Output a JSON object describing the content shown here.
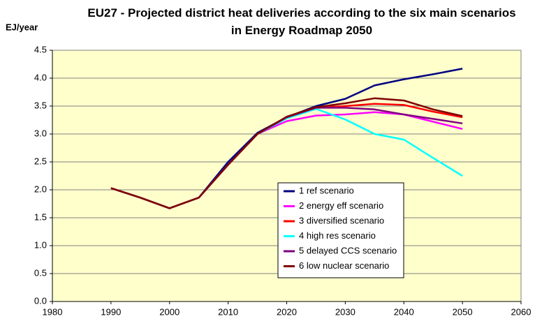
{
  "chart_data": {
    "type": "line",
    "title": "EU27 - Projected district heat deliveries according to the six main scenarios in Energy Roadmap 2050",
    "y_label": "EJ/year",
    "x": [
      1990,
      1995,
      2000,
      2005,
      2010,
      2015,
      2020,
      2025,
      2030,
      2035,
      2040,
      2045,
      2050
    ],
    "xlim": [
      1980,
      2060
    ],
    "xticks": [
      1980,
      1990,
      2000,
      2010,
      2020,
      2030,
      2040,
      2050,
      2060
    ],
    "ylim": [
      0,
      4.5
    ],
    "yticks": [
      {
        "value": 0,
        "label": "0.0"
      },
      0.5,
      {
        "value": 1,
        "label": "1.0"
      },
      1.5,
      {
        "value": 2,
        "label": "2.0"
      },
      2.5,
      {
        "value": 3,
        "label": "3.0"
      },
      3.5,
      {
        "value": 4,
        "label": "4.0"
      },
      4.5
    ],
    "grid": true,
    "legend": "lower-center",
    "background": "#ffffcc",
    "series": [
      {
        "name": "1 ref scenario",
        "color": "#000080",
        "values": [
          2.03,
          1.86,
          1.67,
          1.86,
          2.5,
          3.02,
          3.3,
          3.5,
          3.63,
          3.87,
          3.98,
          4.07,
          4.17
        ]
      },
      {
        "name": "2 energy eff scenario",
        "color": "#ff00ff",
        "values": [
          2.03,
          1.86,
          1.67,
          1.86,
          2.45,
          3.0,
          3.23,
          3.33,
          3.35,
          3.39,
          3.35,
          3.22,
          3.09
        ]
      },
      {
        "name": "3 diversified scenario",
        "color": "#ff0000",
        "values": [
          2.03,
          1.86,
          1.67,
          1.86,
          2.45,
          3.0,
          3.3,
          3.47,
          3.5,
          3.54,
          3.52,
          3.4,
          3.3
        ]
      },
      {
        "name": "4 high res scenario",
        "color": "#00ffff",
        "values": [
          2.03,
          1.86,
          1.67,
          1.86,
          2.45,
          3.0,
          3.28,
          3.45,
          3.26,
          3.0,
          2.9,
          2.57,
          2.25
        ]
      },
      {
        "name": "5 delayed CCS scenario",
        "color": "#800080",
        "values": [
          2.03,
          1.86,
          1.67,
          1.86,
          2.45,
          3.0,
          3.3,
          3.47,
          3.47,
          3.44,
          3.35,
          3.27,
          3.19
        ]
      },
      {
        "name": "6 low nuclear scenario",
        "color": "#800000",
        "values": [
          2.03,
          1.86,
          1.67,
          1.86,
          2.45,
          3.0,
          3.31,
          3.48,
          3.55,
          3.64,
          3.6,
          3.44,
          3.32
        ]
      }
    ]
  }
}
